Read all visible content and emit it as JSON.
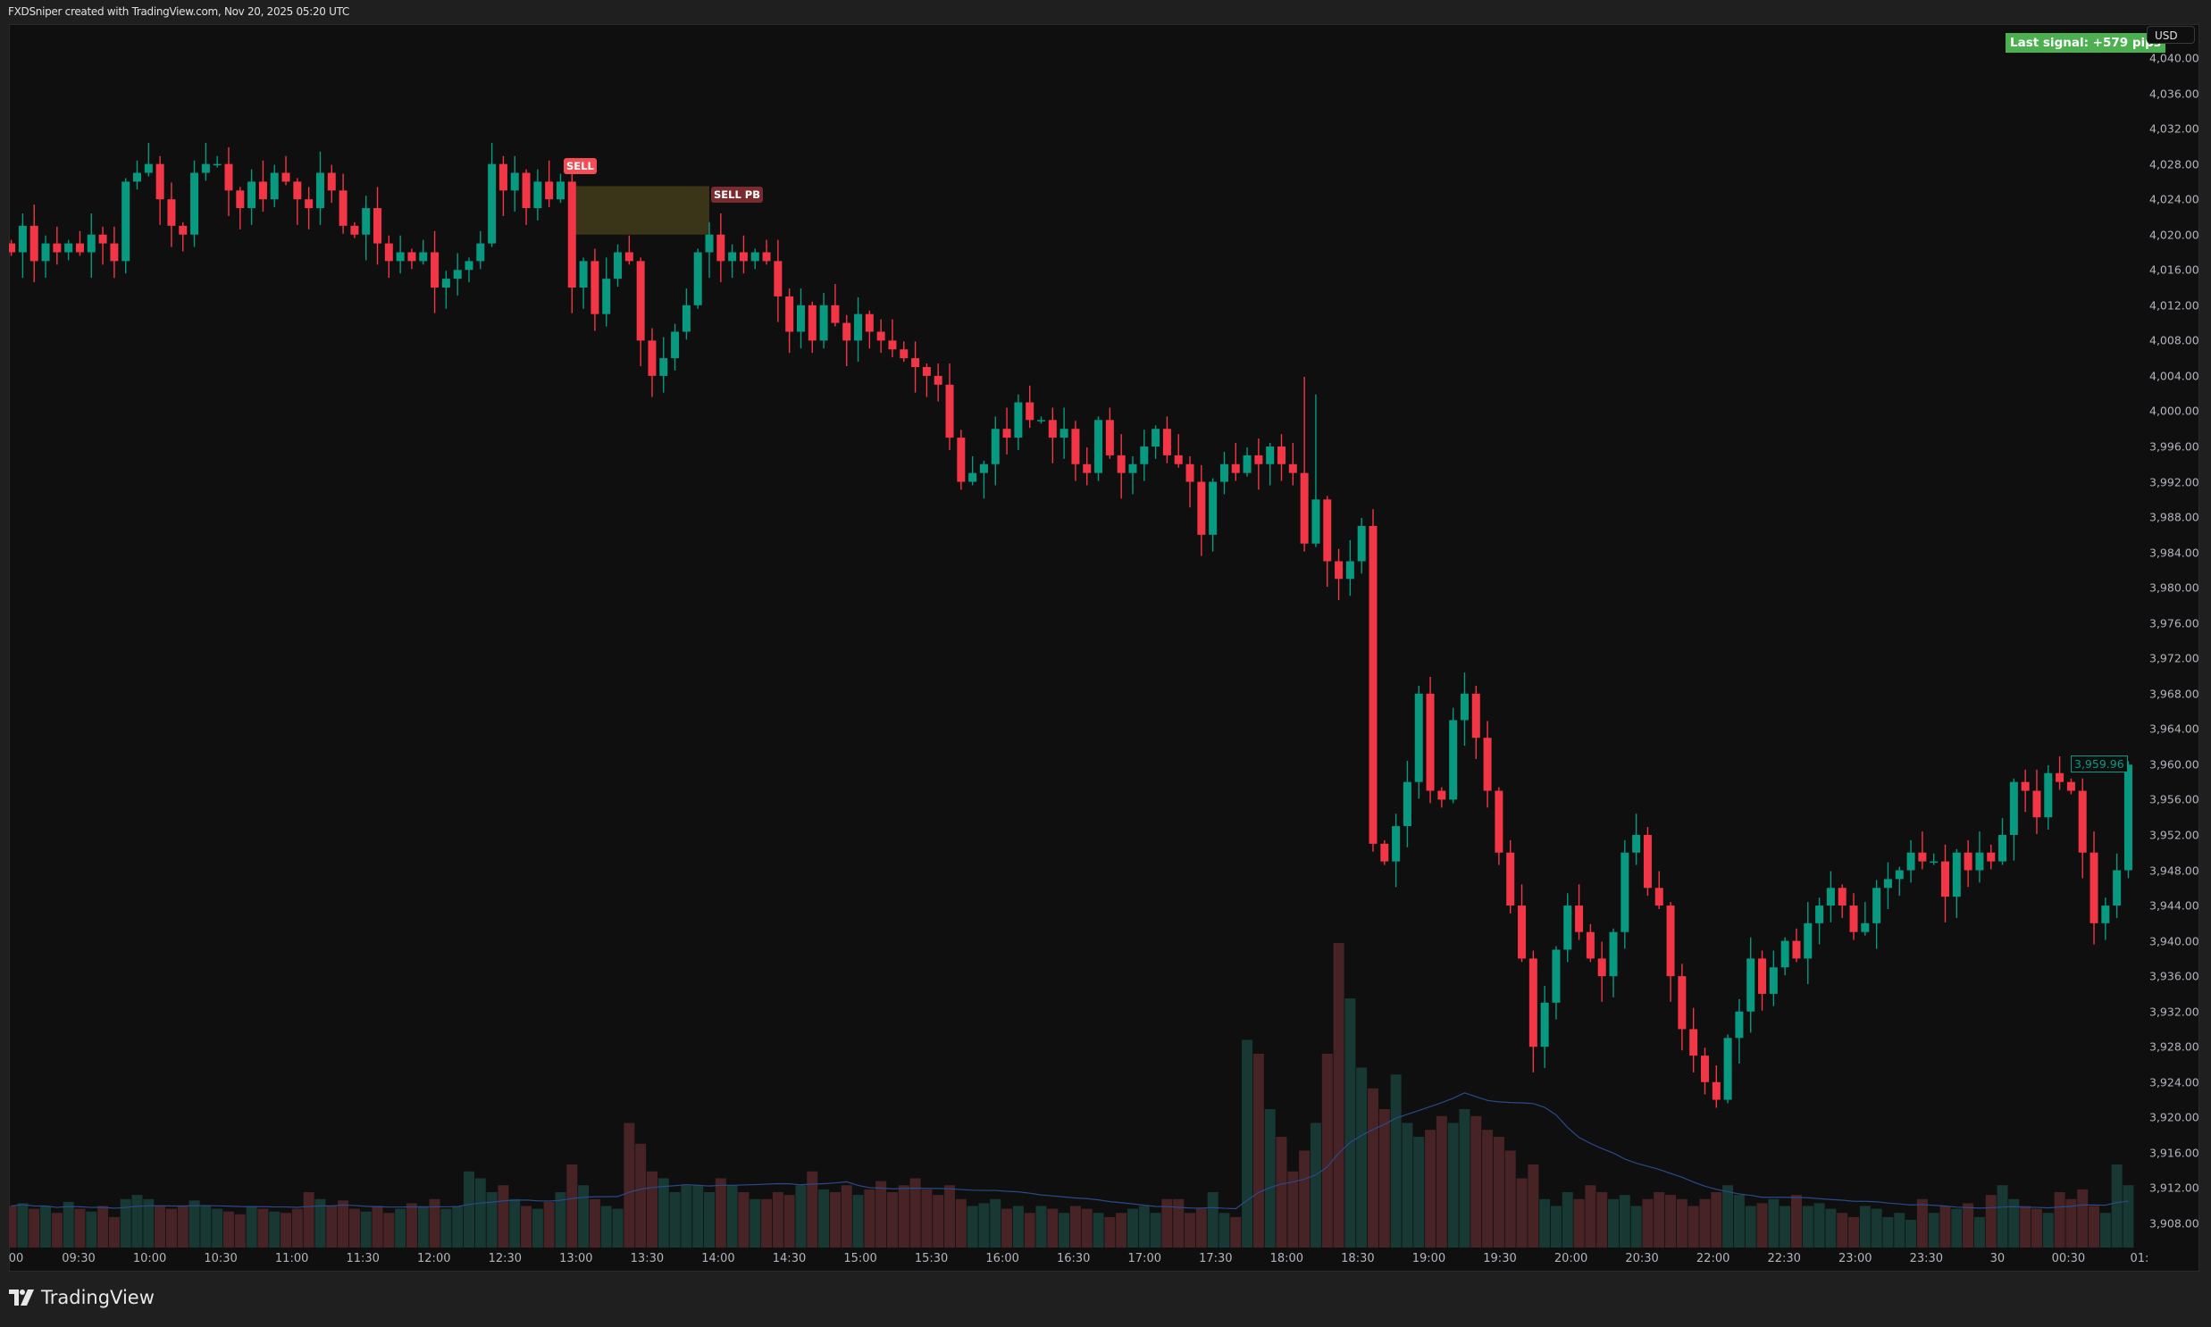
{
  "header": {
    "caption": "FXDSniper created with TradingView.com, Nov 20, 2025 05:20 UTC"
  },
  "signal_badge": "Last signal: +579 pips",
  "currency_button": "USD",
  "last_price": "3,959.96",
  "markers": {
    "sell": "SELL",
    "sell_pb": "SELL PB"
  },
  "brand": "TradingView",
  "colors": {
    "up": "#089981",
    "down": "#f23645",
    "vol_up": "#173833",
    "vol_down": "#472326",
    "zone": "#3f3a1a",
    "ma": "#2a4a8a"
  },
  "chart_data": {
    "type": "candlestick",
    "price_ticks": [
      "4,040.00",
      "4,036.00",
      "4,032.00",
      "4,028.00",
      "4,024.00",
      "4,020.00",
      "4,016.00",
      "4,012.00",
      "4,008.00",
      "4,004.00",
      "4,000.00",
      "3,996.00",
      "3,992.00",
      "3,988.00",
      "3,984.00",
      "3,980.00",
      "3,976.00",
      "3,972.00",
      "3,968.00",
      "3,964.00",
      "3,960.00",
      "3,956.00",
      "3,952.00",
      "3,948.00",
      "3,944.00",
      "3,940.00",
      "3,936.00",
      "3,932.00",
      "3,928.00",
      "3,924.00",
      "3,920.00",
      "3,916.00",
      "3,912.00",
      "3,908.00"
    ],
    "ylim": [
      3908,
      4040
    ],
    "time_ticks": [
      "00",
      "09:30",
      "10:00",
      "10:30",
      "11:00",
      "11:30",
      "12:00",
      "12:30",
      "13:00",
      "13:30",
      "14:00",
      "14:30",
      "15:00",
      "15:30",
      "16:00",
      "16:30",
      "17:00",
      "17:30",
      "18:00",
      "18:30",
      "19:00",
      "19:30",
      "20:00",
      "20:30",
      "22:00",
      "22:30",
      "23:00",
      "23:30",
      "30",
      "00:30",
      "01:"
    ],
    "first_open": 4019,
    "closes": [
      4018,
      4021,
      4017,
      4019,
      4018,
      4019,
      4018,
      4020,
      4019,
      4017,
      4026,
      4027,
      4028,
      4024,
      4021,
      4020,
      4027,
      4028,
      4028,
      4025,
      4023,
      4026,
      4024,
      4027,
      4026,
      4024,
      4023,
      4027,
      4025,
      4021,
      4020,
      4023,
      4019,
      4017,
      4018,
      4017,
      4018,
      4014,
      4015,
      4016,
      4017,
      4019,
      4028,
      4025,
      4027,
      4023,
      4026,
      4024,
      4026,
      4014,
      4017,
      4011,
      4015,
      4018,
      4017,
      4008,
      4004,
      4006,
      4009,
      4012,
      4018,
      4020,
      4017,
      4018,
      4017,
      4018,
      4017,
      4013,
      4009,
      4012,
      4008,
      4012,
      4010,
      4008,
      4011,
      4009,
      4008,
      4007,
      4006,
      4005,
      4004,
      4003,
      3997,
      3992,
      3993,
      3994,
      3998,
      3997,
      4001,
      3999,
      3999,
      3997,
      3998,
      3994,
      3993,
      3999,
      3995,
      3993,
      3994,
      3996,
      3998,
      3995,
      3994,
      3992,
      3986,
      3992,
      3994,
      3993,
      3995,
      3994,
      3996,
      3994,
      3993,
      3985,
      3990,
      3983,
      3981,
      3983,
      3987,
      3951,
      3949,
      3953,
      3958,
      3968,
      3957,
      3956,
      3965,
      3968,
      3963,
      3957,
      3950,
      3944,
      3938,
      3928,
      3933,
      3939,
      3944,
      3941,
      3938,
      3936,
      3941,
      3950,
      3952,
      3946,
      3944,
      3936,
      3930,
      3927,
      3924,
      3922,
      3929,
      3932,
      3938,
      3934,
      3937,
      3940,
      3938,
      3942,
      3944,
      3946,
      3944,
      3941,
      3942,
      3946,
      3947,
      3948,
      3950,
      3949,
      3949,
      3945,
      3950,
      3948,
      3950,
      3949,
      3952,
      3958,
      3957,
      3954,
      3959,
      3958,
      3957,
      3950,
      3942,
      3944,
      3948,
      3959.96
    ],
    "volumes": [
      30,
      32,
      28,
      30,
      25,
      33,
      28,
      26,
      30,
      22,
      35,
      38,
      35,
      30,
      28,
      30,
      34,
      30,
      28,
      26,
      24,
      30,
      28,
      26,
      25,
      28,
      40,
      35,
      30,
      34,
      28,
      26,
      30,
      25,
      28,
      32,
      30,
      35,
      28,
      30,
      55,
      50,
      40,
      45,
      35,
      30,
      28,
      33,
      40,
      60,
      45,
      35,
      30,
      28,
      90,
      75,
      55,
      50,
      40,
      45,
      45,
      40,
      50,
      45,
      40,
      35,
      35,
      40,
      38,
      45,
      55,
      42,
      40,
      45,
      38,
      42,
      48,
      40,
      45,
      50,
      42,
      38,
      45,
      35,
      30,
      32,
      35,
      28,
      30,
      25,
      30,
      28,
      25,
      30,
      28,
      25,
      22,
      25,
      28,
      30,
      25,
      35,
      35,
      25,
      28,
      40,
      25,
      22,
      150,
      140,
      100,
      80,
      55,
      70,
      90,
      140,
      220,
      180,
      130,
      115,
      100,
      125,
      90,
      80,
      85,
      95,
      90,
      100,
      95,
      85,
      80,
      70,
      50,
      60,
      35,
      30,
      40,
      35,
      45,
      40,
      35,
      38,
      30,
      35,
      40,
      38,
      35,
      30,
      35,
      40,
      45,
      38,
      30,
      32,
      35,
      30,
      38,
      30,
      32,
      28,
      25,
      22,
      30,
      28,
      22,
      25,
      20,
      35,
      25,
      30,
      28,
      32,
      22,
      38,
      45,
      35,
      30,
      28,
      25,
      40,
      35,
      42,
      30,
      25,
      60,
      45
    ],
    "signal_zone": {
      "from_bar": 49,
      "to_bar": 61,
      "top": 4025.5,
      "bottom": 4020
    },
    "sell_bar": 49
  }
}
